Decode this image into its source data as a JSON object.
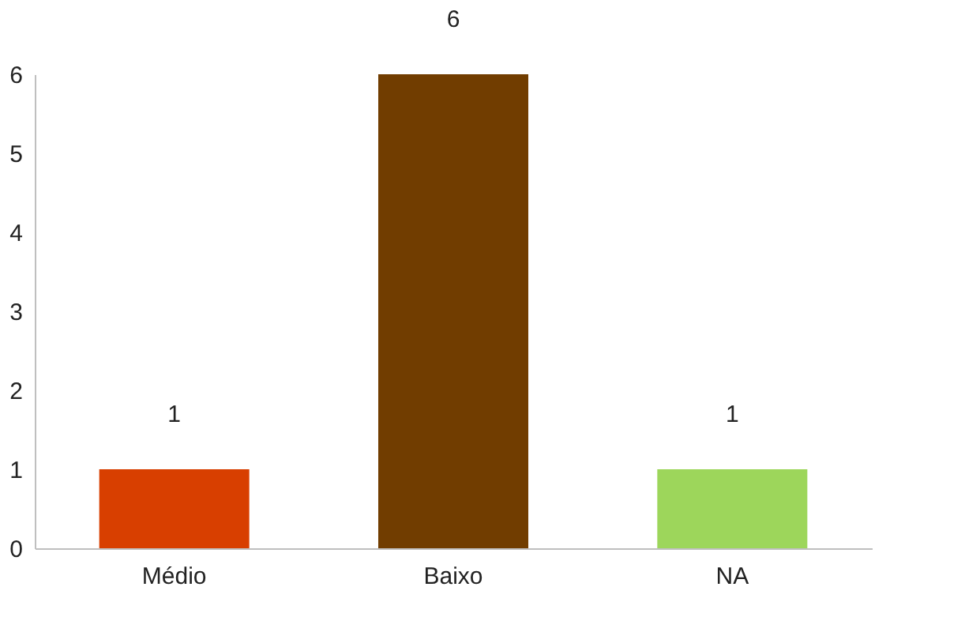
{
  "chart_data": {
    "type": "bar",
    "categories": [
      "Médio",
      "Baixo",
      "NA"
    ],
    "values": [
      1,
      6,
      1
    ],
    "colors": [
      "#d83f00",
      "#713d00",
      "#9dd65b"
    ],
    "ylim": [
      0,
      6
    ],
    "yticks": [
      0,
      1,
      2,
      3,
      4,
      5,
      6
    ],
    "grid": false,
    "data_labels": true
  }
}
